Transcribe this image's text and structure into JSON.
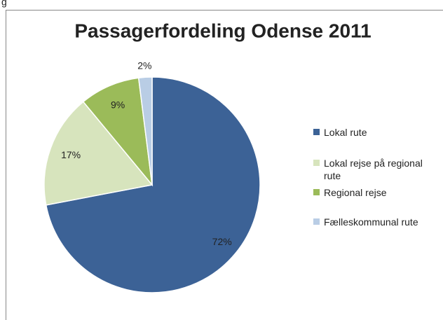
{
  "caption_fragment": "g",
  "chart_data": {
    "type": "pie",
    "title": "Passagerfordeling Odense 2011",
    "categories": [
      "Lokal rute",
      "Lokal rejse på regional rute",
      "Regional rejse",
      "Fælleskommunal rute"
    ],
    "values": [
      72,
      17,
      9,
      2
    ],
    "value_labels": [
      "72%",
      "17%",
      "9%",
      "2%"
    ],
    "colors": [
      "#3c6296",
      "#d7e4bd",
      "#9bbb59",
      "#b9cde5"
    ],
    "legend": "right"
  }
}
